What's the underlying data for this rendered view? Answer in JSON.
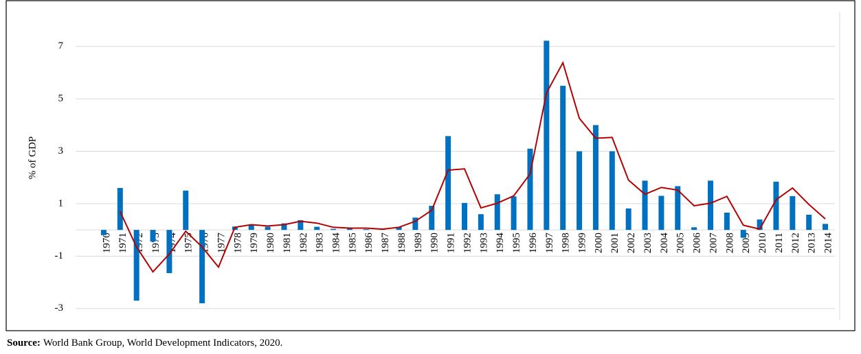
{
  "chart_data": {
    "type": "bar-line",
    "y_label": "% of GDP",
    "categories": [
      "1970",
      "1971",
      "1972",
      "1973",
      "1974",
      "1975",
      "1976",
      "1977",
      "1978",
      "1979",
      "1980",
      "1981",
      "1982",
      "1983",
      "1984",
      "1985",
      "1986",
      "1987",
      "1988",
      "1989",
      "1990",
      "1991",
      "1992",
      "1993",
      "1994",
      "1995",
      "1996",
      "1997",
      "1998",
      "1999",
      "2000",
      "2001",
      "2002",
      "2003",
      "2004",
      "2005",
      "2006",
      "2007",
      "2008",
      "2009",
      "2010",
      "2011",
      "2012",
      "2013",
      "2014"
    ],
    "series": [
      {
        "type": "bar",
        "color": "#0070c0",
        "values": [
          -0.2,
          1.6,
          -2.7,
          -0.45,
          -1.65,
          1.5,
          -2.8,
          0,
          0.13,
          0.18,
          0.12,
          0.25,
          0.37,
          0.12,
          0.04,
          0.06,
          0.03,
          0.02,
          0.12,
          0.47,
          0.92,
          3.58,
          1.03,
          0.6,
          1.36,
          1.28,
          3.1,
          7.22,
          5.5,
          3.0,
          4.0,
          3.0,
          0.82,
          1.88,
          1.3,
          1.67,
          0.1,
          1.88,
          0.66,
          -0.3,
          0.4,
          1.84,
          1.29,
          0.58,
          0.23
        ]
      },
      {
        "type": "line",
        "color": "#b30000",
        "values": [
          null,
          0.7,
          -0.65,
          -1.6,
          -0.92,
          -0.05,
          -0.65,
          -1.42,
          0.1,
          0.2,
          0.15,
          0.2,
          0.33,
          0.26,
          0.1,
          0.07,
          0.07,
          0.03,
          0.1,
          0.33,
          0.75,
          2.28,
          2.33,
          0.84,
          1.02,
          1.3,
          2.14,
          5.23,
          6.38,
          4.26,
          3.5,
          3.53,
          1.9,
          1.36,
          1.62,
          1.52,
          0.92,
          1.02,
          1.28,
          0.18,
          0.03,
          1.15,
          1.6,
          0.97,
          0.42
        ]
      }
    ],
    "ylim": [
      -3.4,
      8.25
    ],
    "yticks": [
      -3,
      -1,
      1,
      3,
      5,
      7
    ],
    "grid": true,
    "source_label": "Source:",
    "source": "World Bank Group, World Development Indicators, 2020."
  }
}
